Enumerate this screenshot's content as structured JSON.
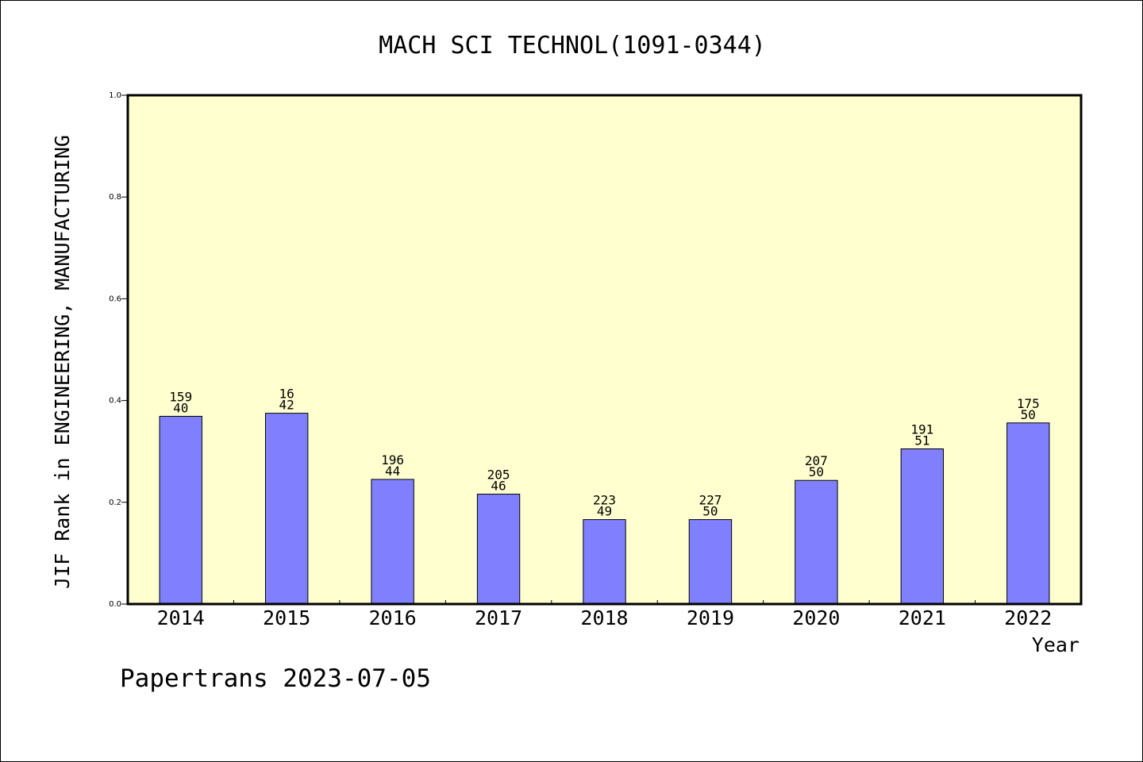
{
  "chart_data": {
    "type": "bar",
    "title": "MACH SCI TECHNOL(1091-0344)",
    "xlabel": "Year",
    "ylabel": "JIF Rank in ENGINEERING, MANUFACTURING",
    "ylim": [
      0,
      1.0
    ],
    "yticks": [
      "0.0",
      "0.2",
      "0.4",
      "0.6",
      "0.8",
      "1.0"
    ],
    "categories": [
      "2014",
      "2015",
      "2016",
      "2017",
      "2018",
      "2019",
      "2020",
      "2021",
      "2022"
    ],
    "series": [
      {
        "values": [
          0.369,
          0.375,
          0.245,
          0.216,
          0.166,
          0.166,
          0.243,
          0.305,
          0.356
        ]
      }
    ],
    "bar_labels": [
      [
        "159",
        "40"
      ],
      [
        "16",
        "42"
      ],
      [
        "196",
        "44"
      ],
      [
        "205",
        "46"
      ],
      [
        "223",
        "49"
      ],
      [
        "227",
        "50"
      ],
      [
        "207",
        "50"
      ],
      [
        "191",
        "51"
      ],
      [
        "175",
        "50"
      ]
    ],
    "footer": "Papertrans 2023-07-05",
    "colors": {
      "plot_background": "#ffffd0",
      "bar_fill": "#8080ff",
      "bar_stroke": "#000000"
    }
  }
}
